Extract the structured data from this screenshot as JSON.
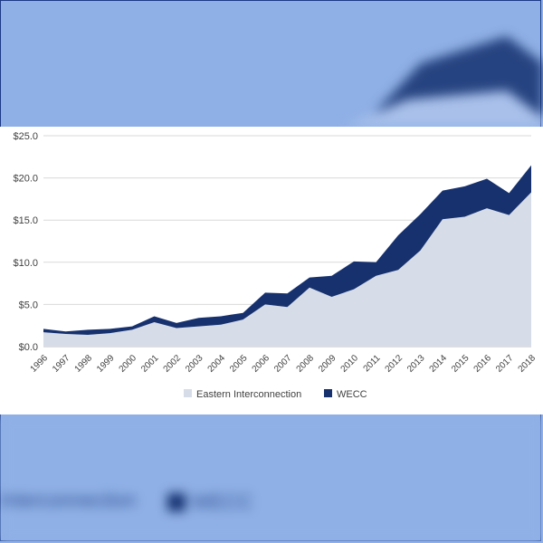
{
  "chart_data": {
    "type": "area",
    "stacked": true,
    "x": [
      "1996",
      "1997",
      "1998",
      "1999",
      "2000",
      "2001",
      "2002",
      "2003",
      "2004",
      "2005",
      "2006",
      "2007",
      "2008",
      "2009",
      "2010",
      "2011",
      "2012",
      "2013",
      "2014",
      "2015",
      "2016",
      "2017",
      "2018"
    ],
    "series": [
      {
        "name": "Eastern Interconnection",
        "color": "#d6dce8",
        "values": [
          1.7,
          1.5,
          1.4,
          1.6,
          2.0,
          2.9,
          2.2,
          2.4,
          2.6,
          3.2,
          5.0,
          4.7,
          7.0,
          5.9,
          6.8,
          8.4,
          9.1,
          11.4,
          15.1,
          15.4,
          16.4,
          15.6,
          18.3
        ]
      },
      {
        "name": "WECC",
        "color": "#16316e",
        "values": [
          0.4,
          0.3,
          0.6,
          0.5,
          0.4,
          0.7,
          0.6,
          1.0,
          1.0,
          0.8,
          1.4,
          1.6,
          1.2,
          2.5,
          3.3,
          1.6,
          4.1,
          4.3,
          3.4,
          3.6,
          3.5,
          2.6,
          3.2
        ]
      }
    ],
    "y_ticks": [
      "$0.0",
      "$5.0",
      "$10.0",
      "$15.0",
      "$20.0",
      "$25.0"
    ],
    "ylim": [
      0,
      25
    ],
    "grid": true,
    "legend_position": "bottom"
  },
  "icons": {
    "legend_swatch": "square"
  }
}
